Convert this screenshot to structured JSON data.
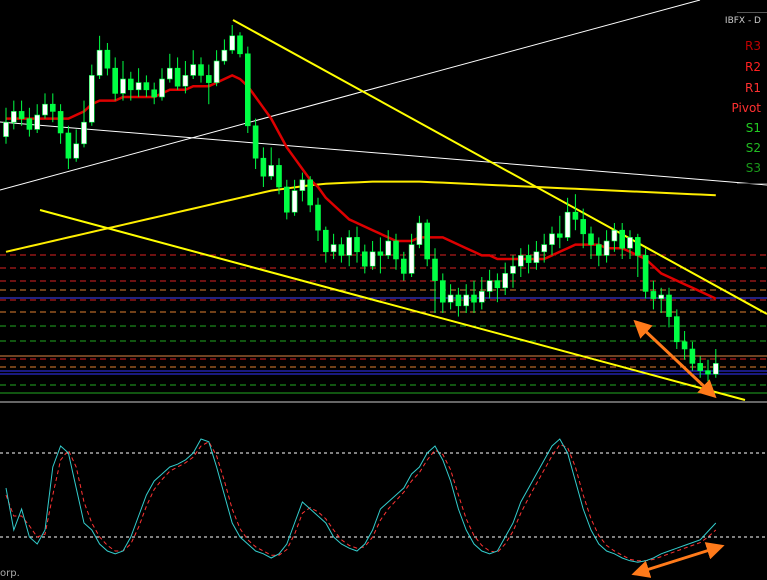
{
  "panel": {
    "header": "IBFX - D",
    "labels": [
      {
        "text": "R3",
        "color": "#c00000"
      },
      {
        "text": "R2",
        "color": "#ff2020"
      },
      {
        "text": "R1",
        "color": "#ff3030"
      },
      {
        "text": "Pivot",
        "color": "#ff3030"
      },
      {
        "text": "S1",
        "color": "#22cc22"
      },
      {
        "text": "S2",
        "color": "#22bb22"
      },
      {
        "text": "S3",
        "color": "#1a991a"
      }
    ]
  },
  "footer": {
    "text": "orp."
  },
  "colors": {
    "background": "#000000",
    "bull": "#ffffff",
    "bear": "#00ff44",
    "ma_fast": "#dd0000",
    "ma_slow": "#ffee00",
    "trendline": "#ffff00",
    "white_line": "#ffffff",
    "stoch_main": "#33cccc",
    "stoch_signal": "#ff3333",
    "arrow": "#ff7a1a"
  },
  "chart_data": [
    {
      "type": "candlestick",
      "title": "",
      "ylim": [
        0,
        1
      ],
      "candles": [
        [
          0.69,
          0.73,
          0.77,
          0.67
        ],
        [
          0.73,
          0.76,
          0.79,
          0.71
        ],
        [
          0.76,
          0.74,
          0.79,
          0.72
        ],
        [
          0.74,
          0.71,
          0.77,
          0.69
        ],
        [
          0.71,
          0.75,
          0.78,
          0.7
        ],
        [
          0.75,
          0.78,
          0.81,
          0.74
        ],
        [
          0.78,
          0.76,
          0.81,
          0.73
        ],
        [
          0.76,
          0.7,
          0.78,
          0.67
        ],
        [
          0.7,
          0.63,
          0.72,
          0.6
        ],
        [
          0.63,
          0.67,
          0.71,
          0.62
        ],
        [
          0.67,
          0.73,
          0.79,
          0.66
        ],
        [
          0.73,
          0.86,
          0.89,
          0.72
        ],
        [
          0.86,
          0.93,
          0.97,
          0.85
        ],
        [
          0.93,
          0.88,
          0.95,
          0.86
        ],
        [
          0.88,
          0.81,
          0.91,
          0.79
        ],
        [
          0.81,
          0.85,
          0.9,
          0.79
        ],
        [
          0.85,
          0.82,
          0.87,
          0.79
        ],
        [
          0.82,
          0.84,
          0.88,
          0.8
        ],
        [
          0.84,
          0.82,
          0.86,
          0.8
        ],
        [
          0.82,
          0.8,
          0.84,
          0.78
        ],
        [
          0.8,
          0.85,
          0.88,
          0.79
        ],
        [
          0.85,
          0.88,
          0.92,
          0.84
        ],
        [
          0.88,
          0.83,
          0.91,
          0.82
        ],
        [
          0.83,
          0.86,
          0.9,
          0.81
        ],
        [
          0.86,
          0.89,
          0.93,
          0.85
        ],
        [
          0.89,
          0.86,
          0.91,
          0.84
        ],
        [
          0.86,
          0.84,
          0.89,
          0.78
        ],
        [
          0.84,
          0.9,
          0.93,
          0.83
        ],
        [
          0.9,
          0.93,
          0.96,
          0.89
        ],
        [
          0.93,
          0.97,
          1.0,
          0.92
        ],
        [
          0.97,
          0.92,
          0.98,
          0.91
        ],
        [
          0.92,
          0.72,
          0.94,
          0.7
        ],
        [
          0.72,
          0.63,
          0.74,
          0.6
        ],
        [
          0.63,
          0.58,
          0.66,
          0.55
        ],
        [
          0.58,
          0.61,
          0.66,
          0.57
        ],
        [
          0.61,
          0.55,
          0.63,
          0.53
        ],
        [
          0.55,
          0.48,
          0.57,
          0.46
        ],
        [
          0.48,
          0.54,
          0.57,
          0.47
        ],
        [
          0.54,
          0.57,
          0.59,
          0.51
        ],
        [
          0.57,
          0.5,
          0.58,
          0.48
        ],
        [
          0.5,
          0.43,
          0.52,
          0.4
        ],
        [
          0.43,
          0.37,
          0.44,
          0.34
        ],
        [
          0.37,
          0.39,
          0.42,
          0.35
        ],
        [
          0.39,
          0.36,
          0.41,
          0.34
        ],
        [
          0.36,
          0.41,
          0.43,
          0.33
        ],
        [
          0.41,
          0.37,
          0.44,
          0.34
        ],
        [
          0.37,
          0.33,
          0.39,
          0.31
        ],
        [
          0.33,
          0.37,
          0.4,
          0.32
        ],
        [
          0.37,
          0.36,
          0.41,
          0.31
        ],
        [
          0.36,
          0.4,
          0.43,
          0.35
        ],
        [
          0.4,
          0.35,
          0.42,
          0.32
        ],
        [
          0.35,
          0.31,
          0.37,
          0.29
        ],
        [
          0.31,
          0.39,
          0.42,
          0.3
        ],
        [
          0.39,
          0.45,
          0.47,
          0.38
        ],
        [
          0.45,
          0.35,
          0.46,
          0.33
        ],
        [
          0.35,
          0.29,
          0.38,
          0.2
        ],
        [
          0.29,
          0.23,
          0.31,
          0.2
        ],
        [
          0.23,
          0.25,
          0.28,
          0.21
        ],
        [
          0.25,
          0.22,
          0.27,
          0.19
        ],
        [
          0.22,
          0.25,
          0.28,
          0.2
        ],
        [
          0.25,
          0.23,
          0.29,
          0.2
        ],
        [
          0.23,
          0.26,
          0.3,
          0.21
        ],
        [
          0.26,
          0.29,
          0.32,
          0.24
        ],
        [
          0.29,
          0.27,
          0.31,
          0.23
        ],
        [
          0.27,
          0.31,
          0.34,
          0.25
        ],
        [
          0.31,
          0.33,
          0.36,
          0.27
        ],
        [
          0.33,
          0.36,
          0.38,
          0.3
        ],
        [
          0.36,
          0.34,
          0.39,
          0.31
        ],
        [
          0.34,
          0.37,
          0.4,
          0.32
        ],
        [
          0.37,
          0.39,
          0.42,
          0.34
        ],
        [
          0.39,
          0.42,
          0.44,
          0.36
        ],
        [
          0.42,
          0.41,
          0.47,
          0.38
        ],
        [
          0.41,
          0.48,
          0.52,
          0.4
        ],
        [
          0.48,
          0.46,
          0.53,
          0.43
        ],
        [
          0.46,
          0.42,
          0.49,
          0.38
        ],
        [
          0.42,
          0.39,
          0.44,
          0.35
        ],
        [
          0.39,
          0.36,
          0.41,
          0.33
        ],
        [
          0.36,
          0.4,
          0.43,
          0.34
        ],
        [
          0.4,
          0.43,
          0.45,
          0.37
        ],
        [
          0.43,
          0.38,
          0.45,
          0.35
        ],
        [
          0.38,
          0.41,
          0.43,
          0.35
        ],
        [
          0.41,
          0.36,
          0.42,
          0.3
        ],
        [
          0.36,
          0.26,
          0.38,
          0.24
        ],
        [
          0.26,
          0.24,
          0.29,
          0.21
        ],
        [
          0.24,
          0.25,
          0.27,
          0.2
        ],
        [
          0.25,
          0.19,
          0.27,
          0.16
        ],
        [
          0.19,
          0.12,
          0.21,
          0.1
        ],
        [
          0.12,
          0.1,
          0.15,
          0.07
        ],
        [
          0.1,
          0.06,
          0.12,
          0.04
        ],
        [
          0.06,
          0.04,
          0.08,
          0.02
        ],
        [
          0.04,
          0.03,
          0.07,
          0.01
        ],
        [
          0.03,
          0.06,
          0.1,
          0.02
        ]
      ],
      "ma_fast": [
        0.74,
        0.74,
        0.74,
        0.74,
        0.74,
        0.74,
        0.74,
        0.74,
        0.74,
        0.75,
        0.76,
        0.78,
        0.79,
        0.79,
        0.79,
        0.8,
        0.8,
        0.8,
        0.8,
        0.8,
        0.81,
        0.82,
        0.82,
        0.82,
        0.83,
        0.83,
        0.83,
        0.84,
        0.85,
        0.86,
        0.85,
        0.83,
        0.8,
        0.77,
        0.74,
        0.7,
        0.66,
        0.63,
        0.6,
        0.57,
        0.55,
        0.52,
        0.5,
        0.48,
        0.46,
        0.45,
        0.44,
        0.43,
        0.42,
        0.41,
        0.4,
        0.4,
        0.4,
        0.41,
        0.41,
        0.41,
        0.41,
        0.4,
        0.39,
        0.38,
        0.37,
        0.36,
        0.36,
        0.35,
        0.35,
        0.35,
        0.35,
        0.35,
        0.35,
        0.35,
        0.36,
        0.37,
        0.38,
        0.39,
        0.39,
        0.39,
        0.39,
        0.38,
        0.38,
        0.38,
        0.37,
        0.36,
        0.35,
        0.33,
        0.31,
        0.3,
        0.29,
        0.28,
        0.27,
        0.26,
        0.25,
        0.24
      ],
      "ma_slow": [
        0.37,
        0.375,
        0.38,
        0.385,
        0.39,
        0.395,
        0.4,
        0.405,
        0.41,
        0.415,
        0.42,
        0.425,
        0.43,
        0.435,
        0.44,
        0.445,
        0.45,
        0.455,
        0.46,
        0.465,
        0.47,
        0.475,
        0.48,
        0.485,
        0.49,
        0.495,
        0.5,
        0.505,
        0.51,
        0.515,
        0.52,
        0.525,
        0.53,
        0.535,
        0.54,
        0.543,
        0.546,
        0.549,
        0.552,
        0.555,
        0.557,
        0.559,
        0.56,
        0.561,
        0.562,
        0.563,
        0.564,
        0.565,
        0.565,
        0.565,
        0.565,
        0.565,
        0.565,
        0.565,
        0.564,
        0.563,
        0.562,
        0.561,
        0.56,
        0.559,
        0.558,
        0.557,
        0.556,
        0.555,
        0.554,
        0.553,
        0.552,
        0.551,
        0.55,
        0.549,
        0.548,
        0.547,
        0.546,
        0.545,
        0.544,
        0.543,
        0.542,
        0.541,
        0.54,
        0.539,
        0.538,
        0.537,
        0.536,
        0.535,
        0.534,
        0.533,
        0.532,
        0.531,
        0.53,
        0.529,
        0.528,
        0.527
      ]
    },
    {
      "type": "line",
      "title": "",
      "ylim": [
        0,
        100
      ],
      "series": [
        {
          "values": [
            55,
            25,
            40,
            20,
            15,
            25,
            70,
            85,
            80,
            55,
            30,
            25,
            15,
            10,
            8,
            10,
            20,
            35,
            50,
            60,
            65,
            70,
            72,
            75,
            80,
            90,
            88,
            70,
            50,
            30,
            20,
            15,
            10,
            8,
            5,
            8,
            15,
            30,
            45,
            40,
            35,
            30,
            20,
            15,
            12,
            10,
            15,
            25,
            40,
            45,
            50,
            55,
            65,
            70,
            80,
            85,
            75,
            60,
            40,
            25,
            15,
            10,
            8,
            10,
            20,
            30,
            45,
            55,
            65,
            75,
            85,
            90,
            80,
            60,
            40,
            25,
            15,
            10,
            8,
            5,
            3,
            2,
            3,
            5,
            8,
            10,
            12,
            14,
            16,
            18,
            24,
            30
          ]
        },
        {
          "values": [
            50,
            35,
            35,
            28,
            20,
            22,
            50,
            75,
            82,
            70,
            45,
            30,
            20,
            14,
            10,
            10,
            15,
            27,
            42,
            54,
            61,
            67,
            70,
            73,
            77,
            85,
            88,
            78,
            60,
            40,
            26,
            18,
            13,
            10,
            7,
            7,
            11,
            22,
            37,
            41,
            38,
            33,
            25,
            18,
            14,
            12,
            13,
            20,
            32,
            40,
            46,
            52,
            60,
            66,
            75,
            82,
            79,
            68,
            50,
            33,
            21,
            14,
            10,
            9,
            15,
            24,
            37,
            48,
            58,
            68,
            78,
            86,
            84,
            70,
            50,
            33,
            21,
            14,
            10,
            7,
            4,
            3,
            3,
            4,
            6,
            8,
            10,
            12,
            14,
            16,
            20,
            25
          ]
        }
      ],
      "reference_lines": [
        80,
        20
      ]
    }
  ]
}
